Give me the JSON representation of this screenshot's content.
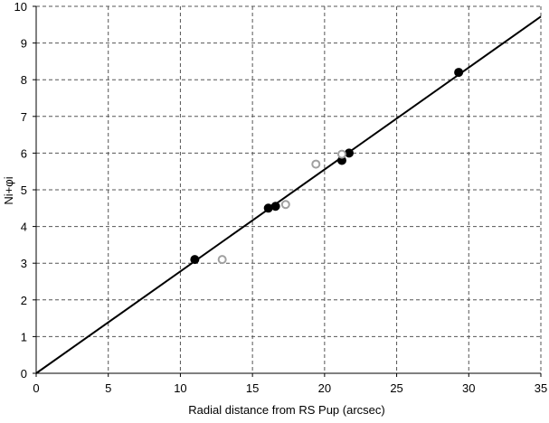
{
  "chart_data": {
    "type": "scatter",
    "title": "",
    "xlabel": "Radial distance from RS Pup (arcsec)",
    "ylabel": "Ni+φi",
    "xlim": [
      0,
      35
    ],
    "ylim": [
      0,
      10
    ],
    "x_ticks": [
      0,
      5,
      10,
      15,
      20,
      25,
      30,
      35
    ],
    "y_ticks": [
      0,
      1,
      2,
      3,
      4,
      5,
      6,
      7,
      8,
      9,
      10
    ],
    "grid": true,
    "grid_style": "dashed",
    "legend": "none",
    "series": [
      {
        "marker": "filled-circle",
        "color": "#000000",
        "points": [
          {
            "x": 11.0,
            "y": 3.1
          },
          {
            "x": 16.1,
            "y": 4.5
          },
          {
            "x": 16.6,
            "y": 4.55
          },
          {
            "x": 21.2,
            "y": 5.8
          },
          {
            "x": 21.7,
            "y": 6.0
          },
          {
            "x": 29.3,
            "y": 8.2
          }
        ]
      },
      {
        "marker": "open-circle",
        "color": "#a0a0a0",
        "points": [
          {
            "x": 12.9,
            "y": 3.1
          },
          {
            "x": 17.3,
            "y": 4.6
          },
          {
            "x": 19.4,
            "y": 5.7
          },
          {
            "x": 21.2,
            "y": 5.97
          }
        ]
      }
    ],
    "fit_line": {
      "color": "#000000",
      "from": {
        "x": 0,
        "y": 0
      },
      "to": {
        "x": 35,
        "y": 9.72
      }
    }
  }
}
